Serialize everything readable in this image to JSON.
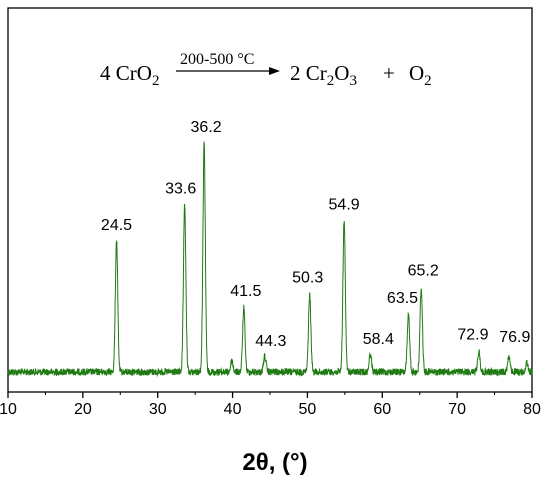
{
  "chart_data": {
    "type": "line",
    "title": "",
    "xlabel": "2θ, (°)",
    "ylabel": "",
    "xlim": [
      10,
      80
    ],
    "x_ticks": [
      "10",
      "20",
      "30",
      "40",
      "50",
      "60",
      "70",
      "80"
    ],
    "grid": false,
    "legend": "none",
    "line_color": "#1f7a12",
    "reaction": {
      "reactant": "4 CrO2",
      "condition": "200-500 °C",
      "product_1": "2 Cr2O3",
      "plus": "+",
      "product_2": "O2"
    },
    "peaks": [
      {
        "position": 24.5,
        "label": "24.5",
        "relative_intensity": 0.58
      },
      {
        "position": 33.6,
        "label": "33.6",
        "relative_intensity": 0.73
      },
      {
        "position": 36.2,
        "label": "36.2",
        "relative_intensity": 1.0
      },
      {
        "position": 39.9,
        "label": "",
        "relative_intensity": 0.05
      },
      {
        "position": 41.5,
        "label": "41.5",
        "relative_intensity": 0.28
      },
      {
        "position": 44.3,
        "label": "44.3",
        "relative_intensity": 0.07
      },
      {
        "position": 50.3,
        "label": "50.3",
        "relative_intensity": 0.34
      },
      {
        "position": 54.9,
        "label": "54.9",
        "relative_intensity": 0.66
      },
      {
        "position": 58.4,
        "label": "58.4",
        "relative_intensity": 0.08
      },
      {
        "position": 63.5,
        "label": "63.5",
        "relative_intensity": 0.25
      },
      {
        "position": 65.2,
        "label": "65.2",
        "relative_intensity": 0.37
      },
      {
        "position": 72.9,
        "label": "72.9",
        "relative_intensity": 0.09
      },
      {
        "position": 76.9,
        "label": "76.9",
        "relative_intensity": 0.07
      },
      {
        "position": 79.3,
        "label": "",
        "relative_intensity": 0.04
      }
    ]
  }
}
